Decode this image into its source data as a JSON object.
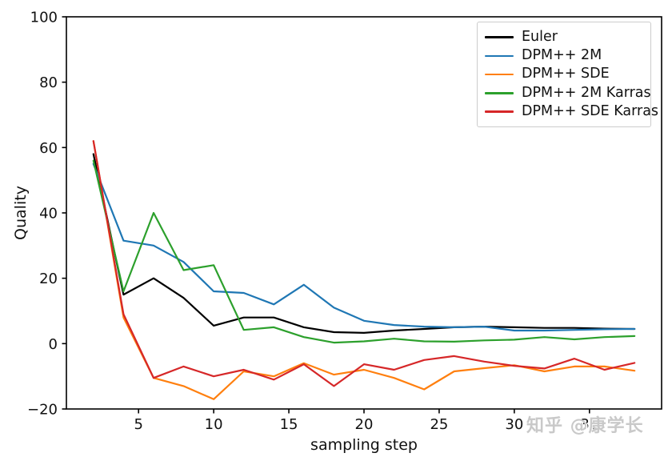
{
  "figure": {
    "watermark": "知乎 @康学长"
  },
  "chart_data": {
    "type": "line",
    "title": "",
    "xlabel": "sampling step",
    "ylabel": "Quality",
    "xlim": [
      0.2,
      39.8
    ],
    "ylim": [
      -20,
      100
    ],
    "xticks": [
      5,
      10,
      15,
      20,
      25,
      30,
      35
    ],
    "yticks": [
      -20,
      0,
      20,
      40,
      60,
      80,
      100
    ],
    "grid": false,
    "legend_position": "upper right",
    "axis_color": "#000000",
    "x": [
      2,
      4,
      6,
      8,
      10,
      12,
      14,
      16,
      18,
      20,
      22,
      24,
      26,
      28,
      30,
      32,
      34,
      36,
      38
    ],
    "series": [
      {
        "name": "Euler",
        "color": "#000000",
        "values": [
          58,
          15,
          20,
          14,
          5.5,
          8,
          8,
          5,
          3.5,
          3.3,
          4,
          4.5,
          5,
          5.2,
          5,
          4.8,
          4.8,
          4.6,
          4.5
        ]
      },
      {
        "name": "DPM++ 2M",
        "color": "#1f77b4",
        "values": [
          55,
          31.5,
          30,
          25,
          16,
          15.5,
          12,
          18,
          11,
          7,
          5.7,
          5.2,
          5,
          5.2,
          4,
          4,
          4.2,
          4.4,
          4.5
        ]
      },
      {
        "name": "DPM++ SDE",
        "color": "#ff7f0e",
        "values": [
          62,
          8,
          -10.5,
          -13,
          -17,
          -8.5,
          -10,
          -6,
          -9.5,
          -8,
          -10.5,
          -14,
          -8.5,
          -7.5,
          -6.6,
          -8.5,
          -7,
          -7,
          -8.3
        ]
      },
      {
        "name": "DPM++ 2M Karras",
        "color": "#2ca02c",
        "values": [
          56,
          16,
          40,
          22.5,
          24,
          4.2,
          5,
          2,
          0.3,
          0.7,
          1.5,
          0.7,
          0.6,
          1,
          1.2,
          2,
          1.3,
          2,
          2.3
        ]
      },
      {
        "name": "DPM++ SDE Karras",
        "color": "#d62728",
        "values": [
          62,
          9,
          -10.5,
          -7,
          -10,
          -8,
          -11,
          -6.3,
          -13,
          -6.3,
          -8,
          -5,
          -3.8,
          -5.5,
          -6.8,
          -7.6,
          -4.6,
          -8,
          -5.9
        ]
      }
    ]
  }
}
